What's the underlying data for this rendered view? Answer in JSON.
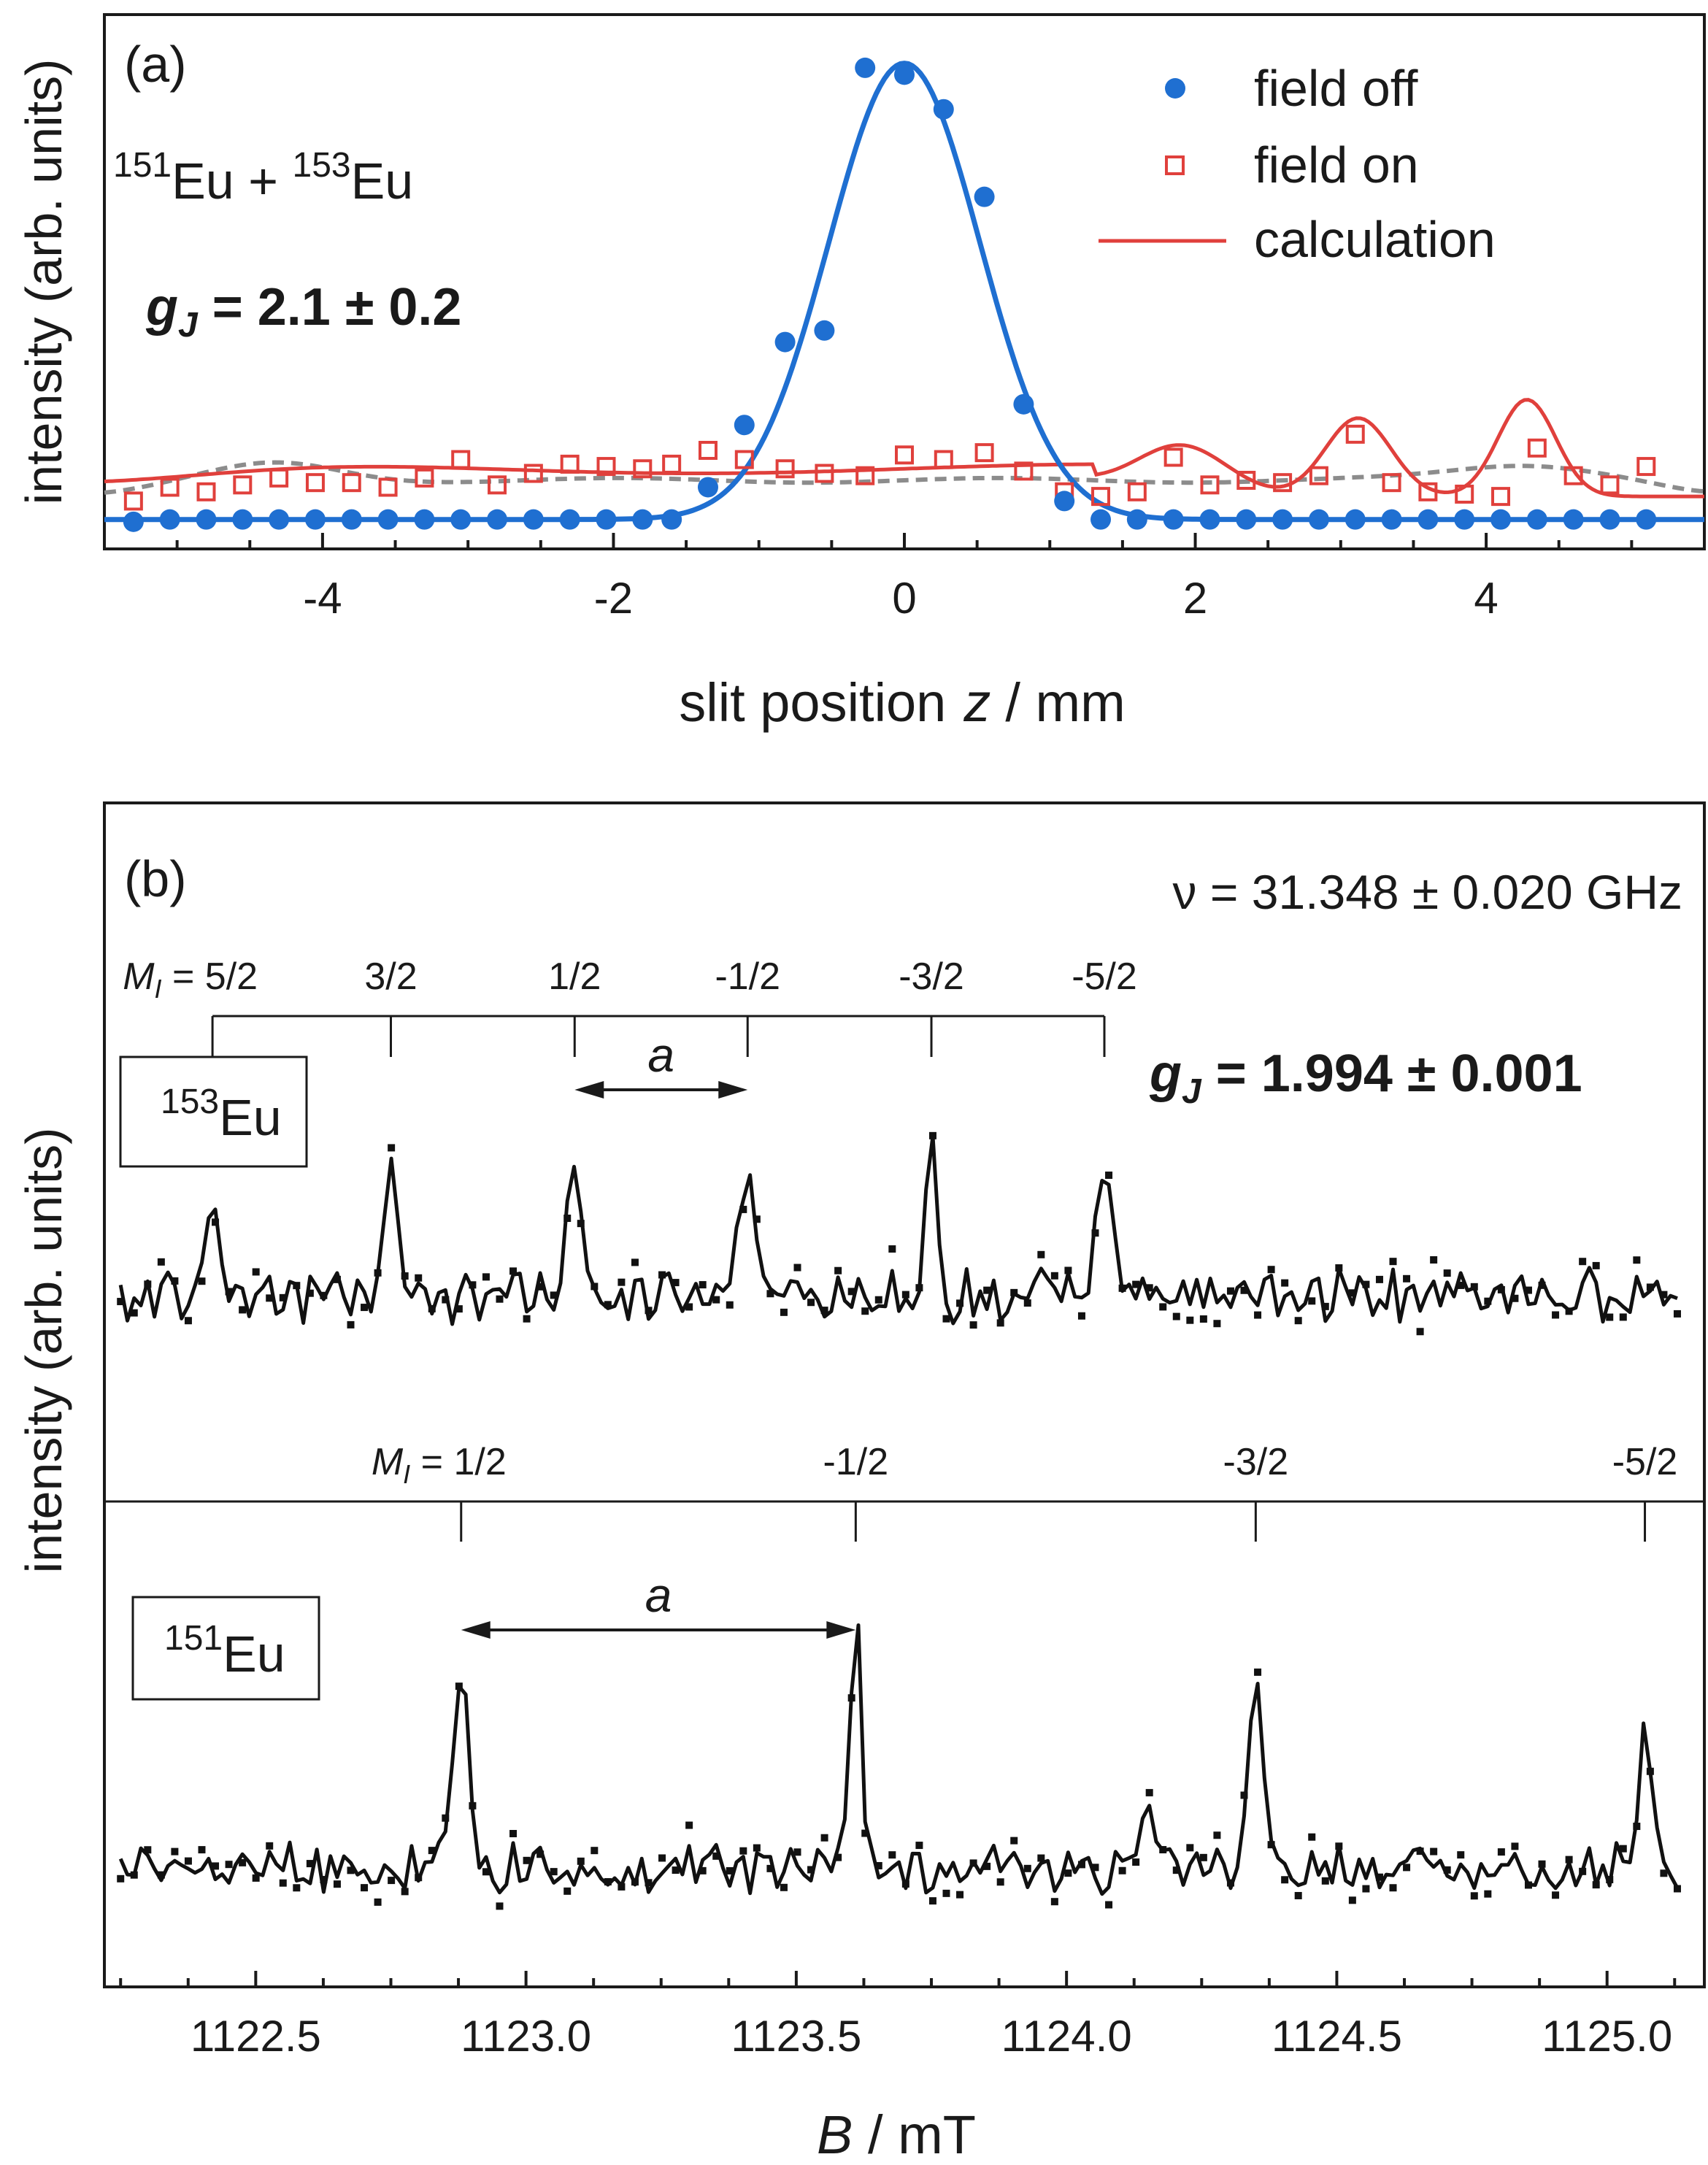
{
  "chart_data": [
    {
      "panel": "(a)",
      "type": "scatter",
      "xlabel_main": "slit position",
      "xlabel_var": "z",
      "xlabel_unit": "/ mm",
      "ylabel": "intensity (arb. units)",
      "xlim": [
        -5.5,
        5.5
      ],
      "ylim": [
        0,
        1.05
      ],
      "xticks": [
        -4,
        -2,
        0,
        2,
        4
      ],
      "xtick_labels": [
        "-4",
        "-2",
        "0",
        "2",
        "4"
      ],
      "grid": false,
      "legend_position": "top-right",
      "isotope_label": {
        "a": "151",
        "b": "Eu + ",
        "c": "153",
        "d": "Eu"
      },
      "gj": {
        "symbol": "g",
        "sub": "J",
        "value": " = 2.1 ± 0.2"
      },
      "legend": [
        {
          "label": "field off",
          "marker": "filled-circle",
          "color": "#1f6fd1"
        },
        {
          "label": "field on",
          "marker": "open-square",
          "color": "#e0403c"
        },
        {
          "label": "calculation",
          "marker": "line",
          "color": "#e0403c"
        }
      ],
      "series": [
        {
          "name": "field off",
          "color": "#1f6fd1",
          "x": [
            -5.3,
            -5.05,
            -4.8,
            -4.55,
            -4.3,
            -4.05,
            -3.8,
            -3.55,
            -3.3,
            -3.05,
            -2.8,
            -2.55,
            -2.3,
            -2.05,
            -1.8,
            -1.6,
            -1.35,
            -1.1,
            -0.82,
            -0.55,
            -0.27,
            0.0,
            0.27,
            0.55,
            0.82,
            1.1,
            1.35,
            1.6,
            1.85,
            2.1,
            2.35,
            2.6,
            2.85,
            3.1,
            3.35,
            3.6,
            3.85,
            4.1,
            4.35,
            4.6,
            4.85,
            5.1
          ],
          "y": [
            0.005,
            0.01,
            0.01,
            0.01,
            0.01,
            0.01,
            0.01,
            0.01,
            0.01,
            0.01,
            0.01,
            0.01,
            0.01,
            0.01,
            0.01,
            0.01,
            0.08,
            0.215,
            0.395,
            0.42,
            0.99,
            0.975,
            0.9,
            0.71,
            0.26,
            0.05,
            0.01,
            0.01,
            0.01,
            0.01,
            0.01,
            0.01,
            0.01,
            0.01,
            0.01,
            0.01,
            0.01,
            0.01,
            0.01,
            0.01,
            0.01,
            0.01
          ]
        },
        {
          "name": "field on",
          "color": "#e0403c",
          "x": [
            -5.3,
            -5.05,
            -4.8,
            -4.55,
            -4.3,
            -4.05,
            -3.8,
            -3.55,
            -3.3,
            -3.05,
            -2.8,
            -2.55,
            -2.3,
            -2.05,
            -1.8,
            -1.6,
            -1.35,
            -1.1,
            -0.82,
            -0.55,
            -0.27,
            0.0,
            0.27,
            0.55,
            0.82,
            1.1,
            1.35,
            1.6,
            1.85,
            2.1,
            2.35,
            2.6,
            2.85,
            3.1,
            3.35,
            3.6,
            3.85,
            4.1,
            4.35,
            4.6,
            4.85,
            5.1
          ],
          "y": [
            0.05,
            0.08,
            0.07,
            0.085,
            0.1,
            0.09,
            0.09,
            0.08,
            0.1,
            0.14,
            0.085,
            0.11,
            0.13,
            0.125,
            0.12,
            0.13,
            0.16,
            0.14,
            0.12,
            0.11,
            0.105,
            0.15,
            0.14,
            0.155,
            0.115,
            0.07,
            0.06,
            0.07,
            0.145,
            0.085,
            0.095,
            0.09,
            0.105,
            0.195,
            0.09,
            0.07,
            0.065,
            0.06,
            0.165,
            0.105,
            0.085,
            0.125
          ]
        },
        {
          "name": "calculation",
          "color": "#e0403c",
          "curve": true
        }
      ]
    },
    {
      "panel": "(b)",
      "type": "line",
      "xlabel_var": "B",
      "xlabel_unit": " / mT",
      "ylabel": "intensity (arb. units)",
      "xlim": [
        1122.22,
        1125.18
      ],
      "xticks": [
        1122.5,
        1123.0,
        1123.5,
        1124.0,
        1124.5,
        1125.0
      ],
      "xtick_labels": [
        "1122.5",
        "1123.0",
        "1123.5",
        "1124.0",
        "1124.5",
        "1125.0"
      ],
      "grid": false,
      "nu_label": "ν = 31.348 ± 0.020 GHz",
      "gj": {
        "symbol": "g",
        "sub": "J",
        "value": " = 1.994 ± 0.001"
      },
      "spacing_label": "a",
      "eu153": {
        "isotope_sup": "153",
        "isotope": "Eu",
        "mi_prefix": "M",
        "mi_sub": "I",
        "mi_labels": [
          " = 5/2",
          "3/2",
          "1/2",
          "-1/2",
          "-3/2",
          "-5/2"
        ],
        "line_positions": [
          1122.42,
          1122.75,
          1123.09,
          1123.41,
          1123.75,
          1124.07
        ]
      },
      "eu151": {
        "isotope_sup": "151",
        "isotope": "Eu",
        "mi_prefix": "M",
        "mi_sub": "I",
        "mi_labels": [
          " = 1/2",
          "-1/2",
          "-3/2",
          "-5/2"
        ],
        "line_positions": [
          1122.88,
          1123.61,
          1124.35,
          1125.07
        ]
      }
    }
  ]
}
